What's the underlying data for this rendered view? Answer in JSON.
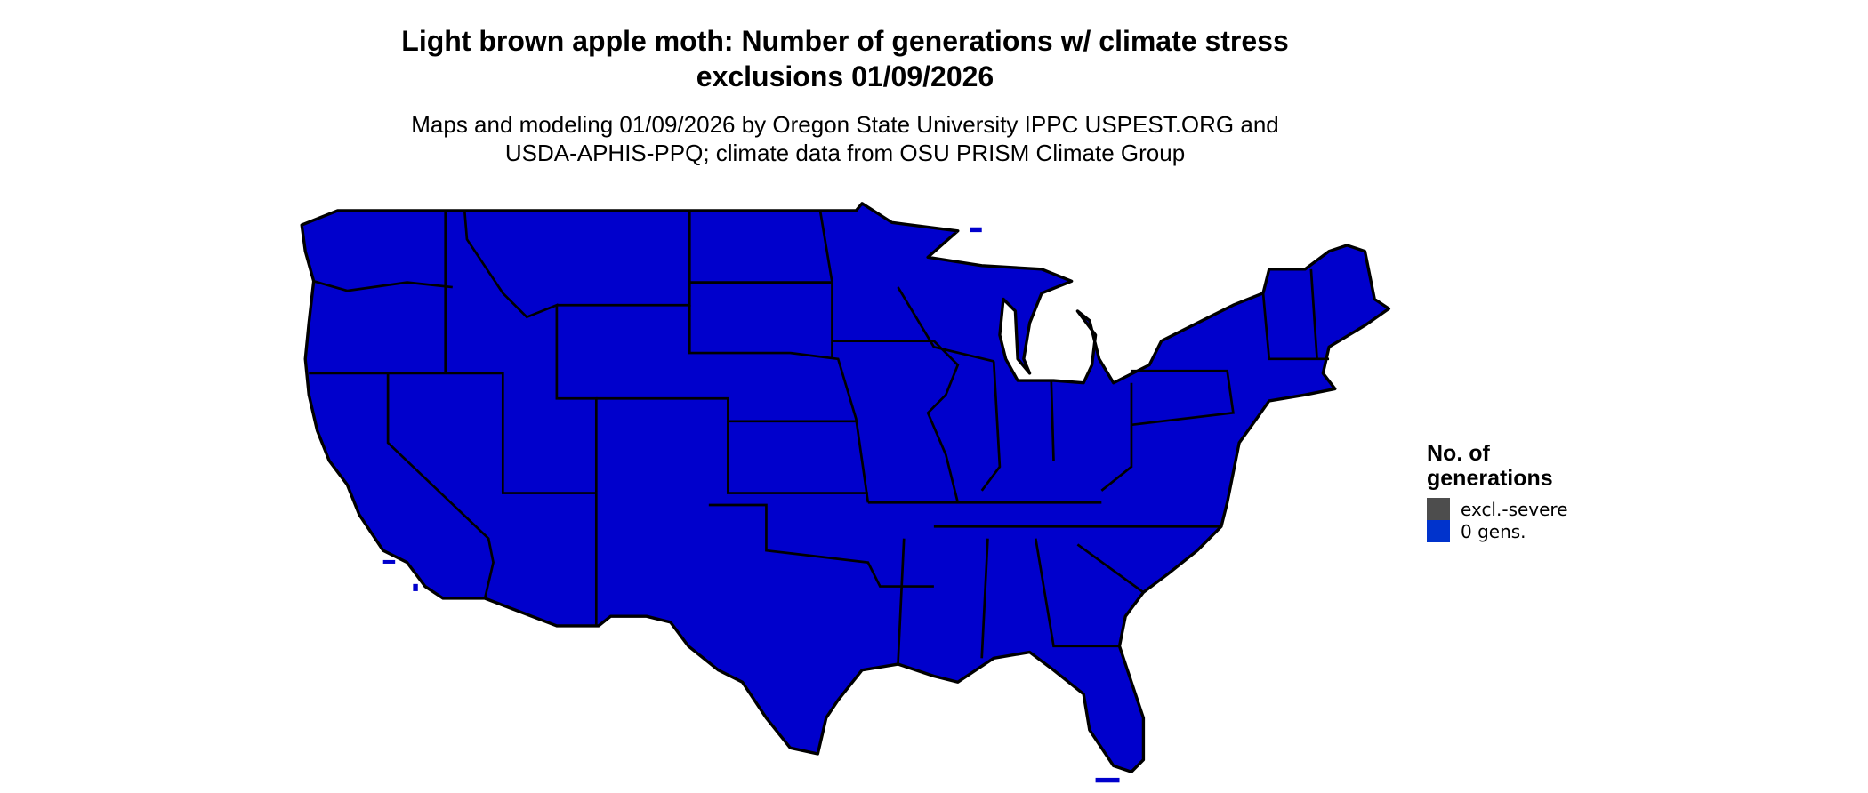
{
  "title_line1": "Light brown apple moth: Number of generations w/ climate stress",
  "title_line2": "exclusions 01/09/2026",
  "subtitle_line1": "Maps and modeling 01/09/2026 by Oregon State University IPPC USPEST.ORG and",
  "subtitle_line2": "USDA-APHIS-PPQ; climate data from OSU PRISM Climate Group",
  "map": {
    "region": "Contiguous United States",
    "fill_color": "#0000CC",
    "border_color": "#000000"
  },
  "legend": {
    "title_line1": "No. of",
    "title_line2": "generations",
    "items": [
      {
        "label": "excl.-severe",
        "color": "#4D4D4D"
      },
      {
        "label": "0 gens.",
        "color": "#0033CC"
      }
    ]
  }
}
